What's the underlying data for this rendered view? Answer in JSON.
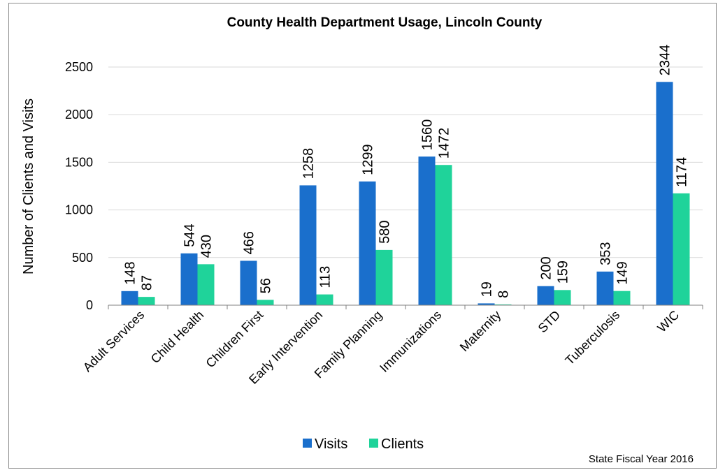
{
  "chart_data": {
    "type": "bar",
    "title": "County Health Department Usage, Lincoln County",
    "ylabel": "Number of Clients and Visits",
    "xlabel": "",
    "ylim": [
      0,
      2500
    ],
    "yticks": [
      0,
      500,
      1000,
      1500,
      2000,
      2500
    ],
    "grid": true,
    "legend_position": "bottom",
    "note": "State Fiscal Year 2016",
    "categories": [
      "Adult Services",
      "Child Health",
      "Children First",
      "Early Intervention",
      "Family Planning",
      "Immunizations",
      "Maternity",
      "STD",
      "Tuberculosis",
      "WIC"
    ],
    "series": [
      {
        "name": "Visits",
        "color": "#1a6fcc",
        "values": [
          148,
          544,
          466,
          1258,
          1299,
          1560,
          19,
          200,
          353,
          2344
        ]
      },
      {
        "name": "Clients",
        "color": "#1fd39a",
        "values": [
          87,
          430,
          56,
          113,
          580,
          1472,
          8,
          159,
          149,
          1174
        ]
      }
    ]
  }
}
